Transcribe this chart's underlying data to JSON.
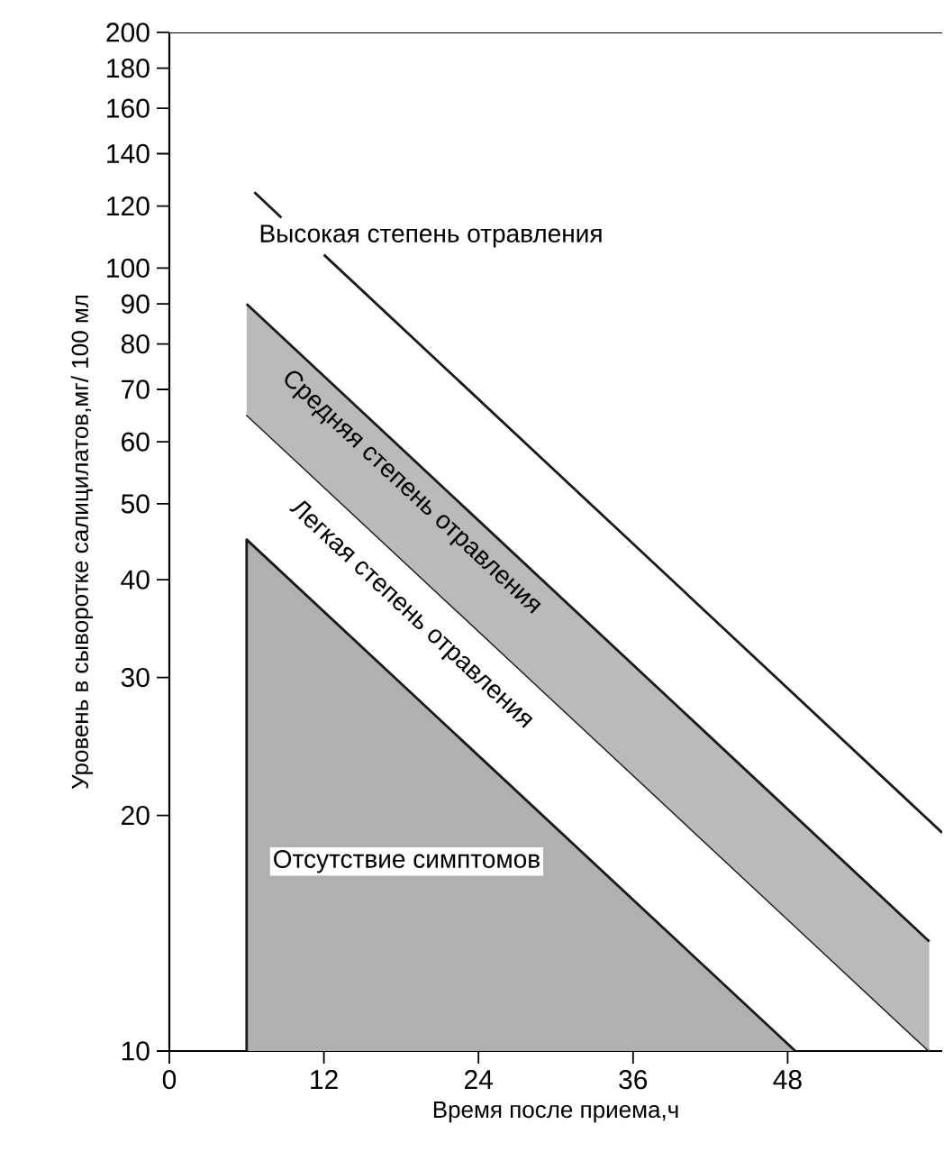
{
  "chart_data": {
    "type": "line",
    "xlabel": "Время после приема,ч",
    "ylabel": "Уровень в сыворотке салицилатов,мг/ 100 мл",
    "log": "y",
    "xlim": [
      0,
      60
    ],
    "ylim": [
      10,
      200
    ],
    "xticks": [
      0,
      12,
      24,
      36,
      48
    ],
    "yticks": [
      10,
      20,
      30,
      40,
      50,
      60,
      70,
      80,
      90,
      100,
      120,
      140,
      160,
      180,
      200
    ],
    "marker": "none",
    "line_style": "solid",
    "series": [
      {
        "type": "area",
        "color": "#b0b0b0",
        "x": [
          6,
          48.6
        ],
        "values": [
          45,
          10
        ]
      },
      {
        "color": "#1a1a1a",
        "x": [
          6,
          59
        ],
        "values": [
          65,
          10
        ]
      },
      {
        "color": "#1a1a1a",
        "x": [
          6,
          59
        ],
        "values": [
          90,
          13.8
        ],
        "lower": [
          65,
          10
        ],
        "upper": [
          90,
          13.8
        ]
      },
      {
        "color": "#1a1a1a",
        "x": [
          6.6,
          8.7,
          10,
          12,
          60
        ],
        "values": [
          125,
          116,
          null,
          104,
          19
        ]
      }
    ],
    "annotations": [
      "Высокая степень отравления",
      "Средняя степень отравления",
      "Легкая степень отравления",
      "Отсутствие симптомов"
    ]
  }
}
